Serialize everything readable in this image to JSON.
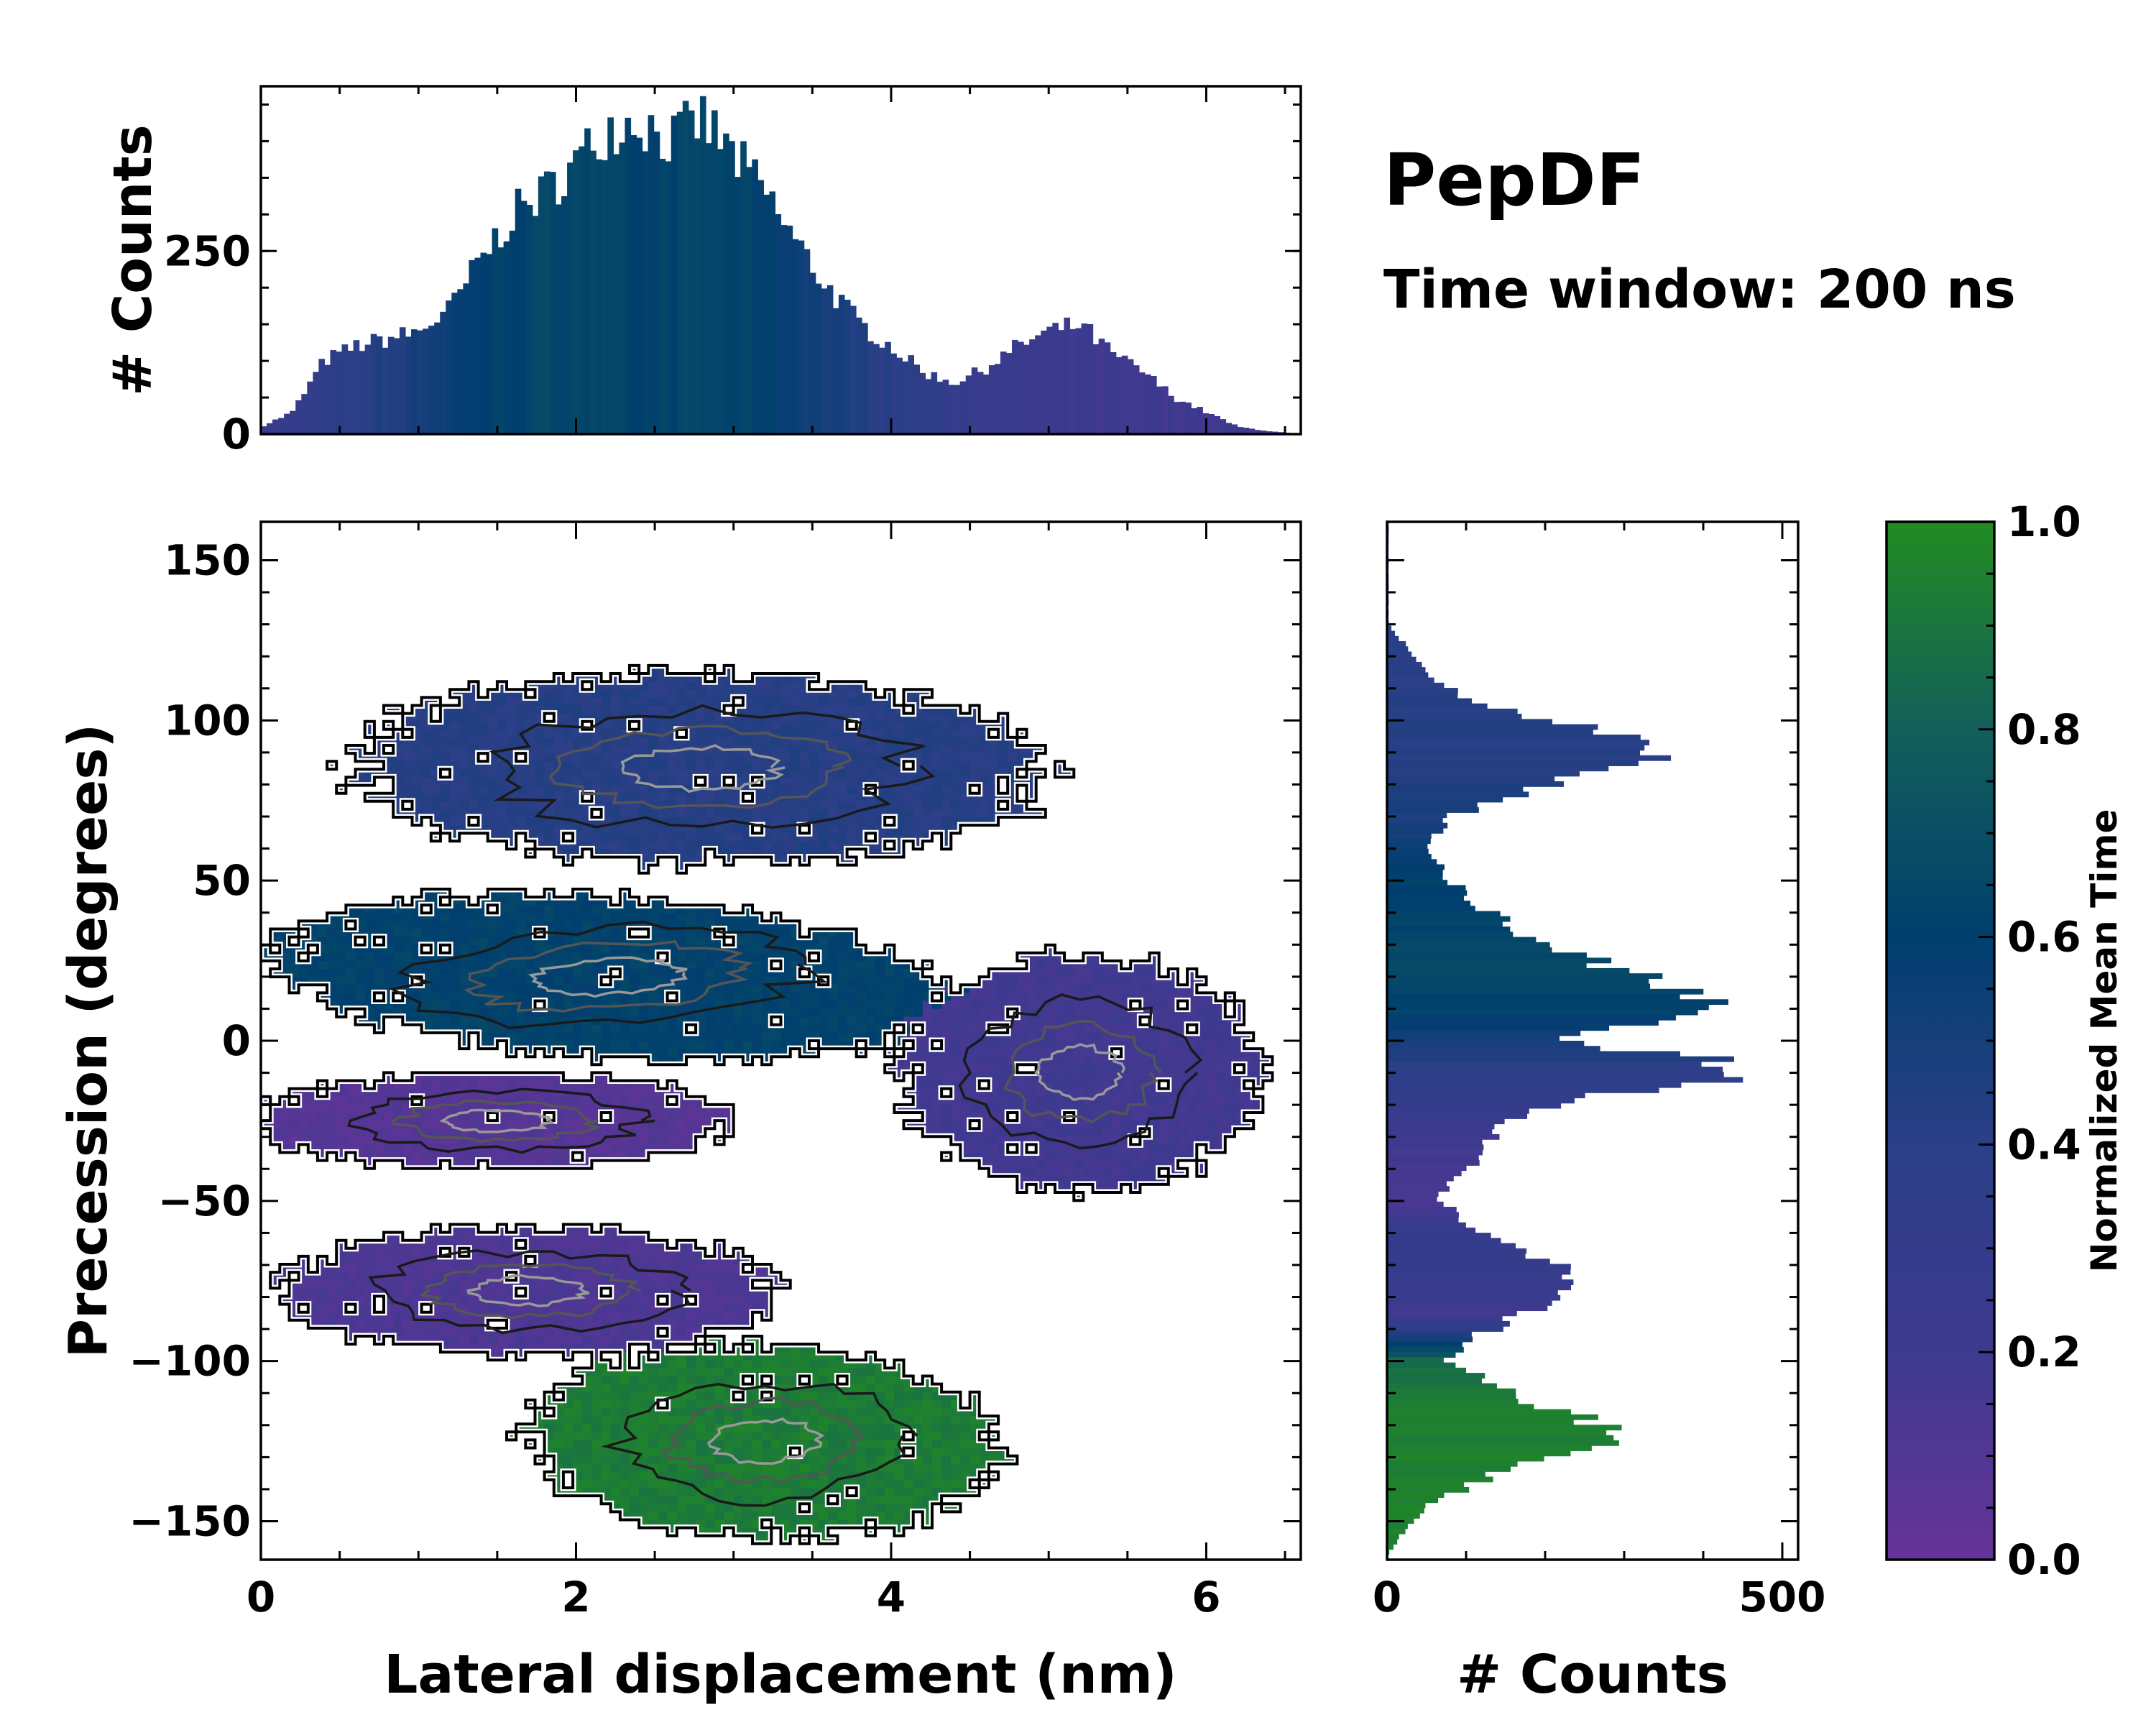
{
  "figure": {
    "title": "PepDF",
    "subtitle": "Time window: 200 ns"
  },
  "chart_data": [
    {
      "panel": "top-marginal",
      "type": "bar",
      "orientation": "vertical",
      "xlim": [
        0,
        6.6
      ],
      "ylim": [
        0,
        475
      ],
      "ylabel": "# Counts",
      "yticks": [
        0,
        250
      ],
      "ytick_labels": [
        "0",
        "250"
      ],
      "x_profile": [
        0,
        0.2,
        0.4,
        0.6,
        0.8,
        1.0,
        1.2,
        1.4,
        1.6,
        1.8,
        2.0,
        2.2,
        2.4,
        2.6,
        2.8,
        3.0,
        3.2,
        3.4,
        3.6,
        3.8,
        4.0,
        4.2,
        4.4,
        4.6,
        4.8,
        5.0,
        5.2,
        5.4,
        5.6,
        5.8,
        6.0,
        6.2,
        6.4,
        6.6
      ],
      "y_profile": [
        10,
        30,
        100,
        120,
        130,
        140,
        170,
        240,
        300,
        330,
        370,
        420,
        430,
        400,
        430,
        380,
        330,
        260,
        200,
        150,
        120,
        85,
        70,
        90,
        120,
        140,
        150,
        110,
        85,
        50,
        30,
        10,
        4,
        0
      ],
      "mean_time_profile": [
        0.25,
        0.3,
        0.35,
        0.4,
        0.45,
        0.5,
        0.55,
        0.6,
        0.62,
        0.64,
        0.66,
        0.63,
        0.6,
        0.62,
        0.65,
        0.63,
        0.6,
        0.55,
        0.5,
        0.45,
        0.4,
        0.35,
        0.3,
        0.25,
        0.22,
        0.2,
        0.2,
        0.2,
        0.2,
        0.2,
        0.2,
        0.2,
        0.2,
        0.2
      ]
    },
    {
      "panel": "main-heatmap",
      "type": "heatmap",
      "xlabel": "Lateral displacement (nm)",
      "ylabel": "Precession (degrees)",
      "xlim": [
        0,
        6.6
      ],
      "ylim": [
        -162,
        162
      ],
      "xticks": [
        0,
        2,
        4,
        6
      ],
      "xtick_labels": [
        "0",
        "2",
        "4",
        "6"
      ],
      "yticks": [
        150,
        100,
        50,
        0,
        -50,
        -100,
        -150
      ],
      "ytick_labels": [
        "150",
        "100",
        "50",
        "0",
        "−50",
        "−100",
        "−150"
      ],
      "color_value": "Normalized Mean Time",
      "clusters": [
        {
          "x_center": 2.8,
          "y_center": 85,
          "x_width": 4.4,
          "y_height": 60,
          "slope": -0.02,
          "mean_time": 0.42
        },
        {
          "x_center": 2.2,
          "y_center": 20,
          "x_width": 4.3,
          "y_height": 50,
          "slope": -0.1,
          "mean_time": 0.62
        },
        {
          "x_center": 5.2,
          "y_center": -10,
          "x_width": 2.3,
          "y_height": 75,
          "slope": 0,
          "mean_time": 0.18
        },
        {
          "x_center": 1.5,
          "y_center": -25,
          "x_width": 3.0,
          "y_height": 30,
          "slope": 0,
          "mean_time": 0.08
        },
        {
          "x_center": 1.7,
          "y_center": -78,
          "x_width": 3.2,
          "y_height": 40,
          "slope": 0,
          "mean_time": 0.12
        },
        {
          "x_center": 3.2,
          "y_center": -125,
          "x_width": 3.0,
          "y_height": 60,
          "slope": -0.06,
          "mean_time": 0.93
        }
      ]
    },
    {
      "panel": "right-marginal",
      "type": "bar",
      "orientation": "horizontal",
      "xlim": [
        0,
        520
      ],
      "ylim": [
        -162,
        162
      ],
      "xlabel": "# Counts",
      "xticks": [
        0,
        500
      ],
      "xtick_labels": [
        "0",
        "500"
      ],
      "y_profile": [
        130,
        115,
        105,
        100,
        95,
        90,
        80,
        70,
        60,
        50,
        40,
        30,
        20,
        10,
        5,
        0,
        -5,
        -10,
        -20,
        -30,
        -40,
        -50,
        -60,
        -70,
        -80,
        -85,
        -95,
        -100,
        -110,
        -120,
        -125,
        -135,
        -145,
        -155,
        -160
      ],
      "x_profile": [
        2,
        50,
        110,
        220,
        300,
        360,
        200,
        80,
        45,
        80,
        130,
        200,
        330,
        460,
        300,
        200,
        400,
        480,
        200,
        130,
        100,
        60,
        130,
        220,
        230,
        180,
        90,
        80,
        160,
        270,
        290,
        140,
        50,
        15,
        2
      ],
      "mean_time_profile": [
        0.4,
        0.4,
        0.42,
        0.42,
        0.42,
        0.42,
        0.45,
        0.48,
        0.55,
        0.6,
        0.62,
        0.64,
        0.66,
        0.62,
        0.58,
        0.5,
        0.45,
        0.38,
        0.3,
        0.2,
        0.15,
        0.12,
        0.28,
        0.3,
        0.25,
        0.15,
        0.6,
        0.85,
        0.92,
        0.95,
        0.95,
        0.95,
        0.95,
        0.95,
        0.95
      ]
    },
    {
      "panel": "colorbar",
      "type": "colorbar",
      "label": "Normalized Mean Time",
      "range": [
        0,
        1
      ],
      "ticks": [
        0,
        0.2,
        0.4,
        0.6,
        0.8,
        1.0
      ],
      "tick_labels": [
        "0.0",
        "0.2",
        "0.4",
        "0.6",
        "0.8",
        "1.0"
      ],
      "colormap_stops": [
        "#663399",
        "#3d3a8f",
        "#2b3f87",
        "#003f6e",
        "#135f5a",
        "#228b22"
      ]
    }
  ]
}
